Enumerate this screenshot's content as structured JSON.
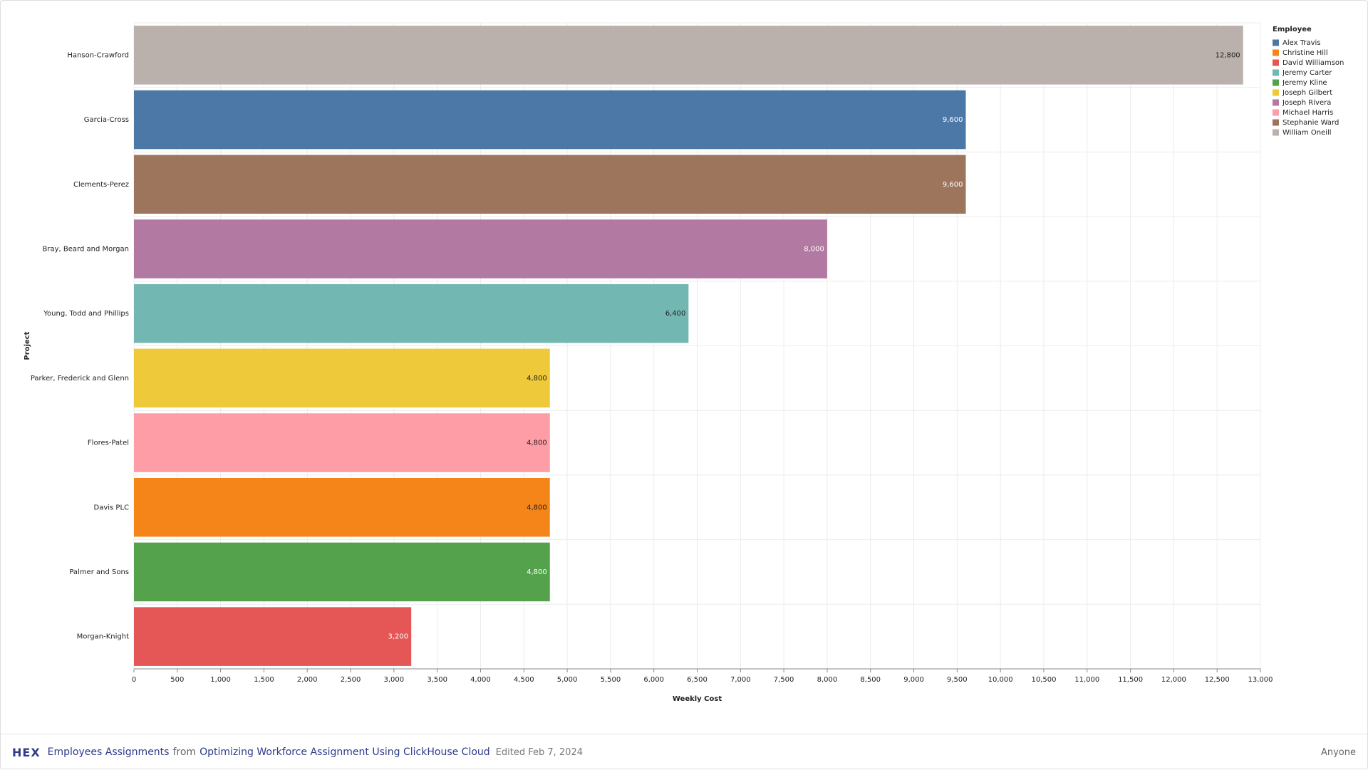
{
  "chart_data": {
    "type": "bar",
    "orientation": "horizontal",
    "stacked": true,
    "x_label": "Weekly Cost",
    "y_label": "Project",
    "legend_title": "Employee",
    "legend": "right",
    "grid": true,
    "categories": [
      "Hanson-Crawford",
      "Garcia-Cross",
      "Clements-Perez",
      "Bray, Beard and Morgan",
      "Young, Todd and Phillips",
      "Parker, Frederick and Glenn",
      "Flores-Patel",
      "Davis PLC",
      "Palmer and Sons",
      "Morgan-Knight"
    ],
    "series": [
      {
        "name": "Alex Travis",
        "color": "#4c78a8",
        "values": [
          null,
          9600,
          null,
          null,
          null,
          null,
          null,
          null,
          null,
          null
        ],
        "value_labels": [
          null,
          "9,600",
          null,
          null,
          null,
          null,
          null,
          null,
          null,
          null
        ]
      },
      {
        "name": "Christine Hill",
        "color": "#f58518",
        "values": [
          null,
          null,
          null,
          null,
          null,
          null,
          null,
          4800,
          null,
          null
        ],
        "value_labels": [
          null,
          null,
          null,
          null,
          null,
          null,
          null,
          "4,800",
          null,
          null
        ]
      },
      {
        "name": "David Williamson",
        "color": "#e45756",
        "values": [
          null,
          null,
          null,
          null,
          null,
          null,
          null,
          null,
          null,
          3200
        ],
        "value_labels": [
          null,
          null,
          null,
          null,
          null,
          null,
          null,
          null,
          null,
          "3,200"
        ]
      },
      {
        "name": "Jeremy Carter",
        "color": "#72b7b2",
        "values": [
          null,
          null,
          null,
          null,
          6400,
          null,
          null,
          null,
          null,
          null
        ],
        "value_labels": [
          null,
          null,
          null,
          null,
          "6,400",
          null,
          null,
          null,
          null,
          null
        ]
      },
      {
        "name": "Jeremy Kline",
        "color": "#54a24b",
        "values": [
          null,
          null,
          null,
          null,
          null,
          null,
          null,
          null,
          4800,
          null
        ],
        "value_labels": [
          null,
          null,
          null,
          null,
          null,
          null,
          null,
          null,
          "4,800",
          null
        ]
      },
      {
        "name": "Joseph Gilbert",
        "color": "#eeca3b",
        "values": [
          null,
          null,
          null,
          null,
          null,
          4800,
          null,
          null,
          null,
          null
        ],
        "value_labels": [
          null,
          null,
          null,
          null,
          null,
          "4,800",
          null,
          null,
          null,
          null
        ]
      },
      {
        "name": "Joseph Rivera",
        "color": "#b279a2",
        "values": [
          null,
          null,
          null,
          8000,
          null,
          null,
          null,
          null,
          null,
          null
        ],
        "value_labels": [
          null,
          null,
          null,
          "8,000",
          null,
          null,
          null,
          null,
          null,
          null
        ]
      },
      {
        "name": "Michael Harris",
        "color": "#ff9da6",
        "values": [
          null,
          null,
          null,
          null,
          null,
          null,
          4800,
          null,
          null,
          null
        ],
        "value_labels": [
          null,
          null,
          null,
          null,
          null,
          null,
          "4,800",
          null,
          null,
          null
        ]
      },
      {
        "name": "Stephanie Ward",
        "color": "#9d755d",
        "values": [
          null,
          null,
          9600,
          null,
          null,
          null,
          null,
          null,
          null,
          null
        ],
        "value_labels": [
          null,
          null,
          "9,600",
          null,
          null,
          null,
          null,
          null,
          null,
          null
        ]
      },
      {
        "name": "William Oneill",
        "color": "#bab0ac",
        "values": [
          12800,
          null,
          null,
          null,
          null,
          null,
          null,
          null,
          null,
          null
        ],
        "value_labels": [
          "12,800",
          null,
          null,
          null,
          null,
          null,
          null,
          null,
          null,
          null
        ]
      }
    ],
    "xlim": [
      0,
      13000
    ],
    "xticks": [
      0,
      500,
      {
        "value": 1000,
        "label": "1,000"
      },
      {
        "value": 1500,
        "label": "1,500"
      },
      {
        "value": 2000,
        "label": "2,000"
      },
      {
        "value": 2500,
        "label": "2,500"
      },
      {
        "value": 3000,
        "label": "3,000"
      },
      {
        "value": 3500,
        "label": "3,500"
      },
      {
        "value": 4000,
        "label": "4,000"
      },
      {
        "value": 4500,
        "label": "4,500"
      },
      {
        "value": 5000,
        "label": "5,000"
      },
      {
        "value": 5500,
        "label": "5,500"
      },
      {
        "value": 6000,
        "label": "6,000"
      },
      {
        "value": 6500,
        "label": "6,500"
      },
      {
        "value": 7000,
        "label": "7,000"
      },
      {
        "value": 7500,
        "label": "7,500"
      },
      {
        "value": 8000,
        "label": "8,000"
      },
      {
        "value": 8500,
        "label": "8,500"
      },
      {
        "value": 9000,
        "label": "9,000"
      },
      {
        "value": 9500,
        "label": "9,500"
      },
      {
        "value": 10000,
        "label": "10,000"
      },
      {
        "value": 10500,
        "label": "10,500"
      },
      {
        "value": 11000,
        "label": "11,000"
      },
      {
        "value": 11500,
        "label": "11,500"
      },
      {
        "value": 12000,
        "label": "12,000"
      },
      {
        "value": 12500,
        "label": "12,500"
      },
      {
        "value": 13000,
        "label": "13,000"
      }
    ]
  },
  "footer": {
    "logo": "HEX",
    "title": "Employees Assignments",
    "from": "from",
    "project": "Optimizing Workforce Assignment Using ClickHouse Cloud",
    "edited": "Edited Feb 7, 2024",
    "share": "Anyone"
  }
}
